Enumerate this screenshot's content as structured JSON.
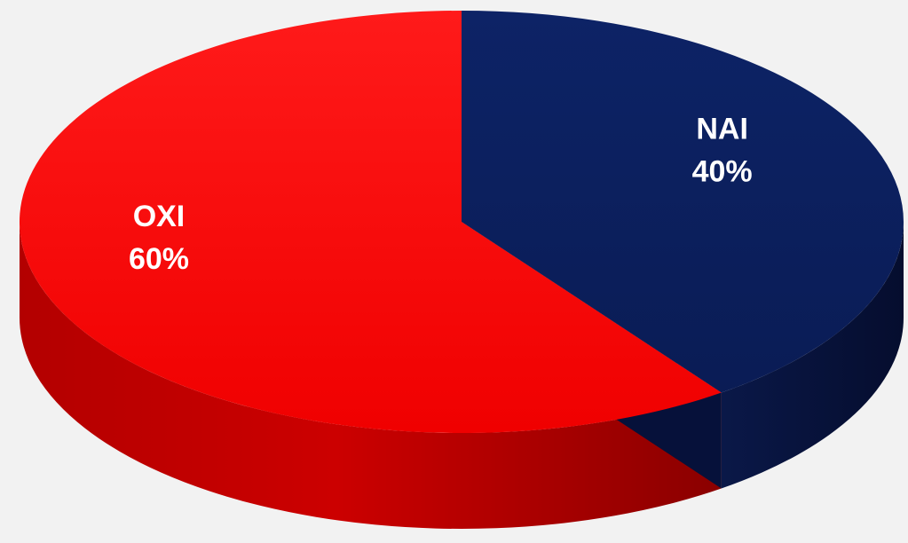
{
  "chart_data": {
    "type": "pie",
    "style": "3d",
    "slices": [
      {
        "label": "NAI",
        "value": 40,
        "value_label": "40%",
        "color": "#0b1f5c"
      },
      {
        "label": "OXI",
        "value": 60,
        "value_label": "60%",
        "color": "#ff0000"
      }
    ],
    "legend": "none",
    "background": "#f2f2f2"
  }
}
